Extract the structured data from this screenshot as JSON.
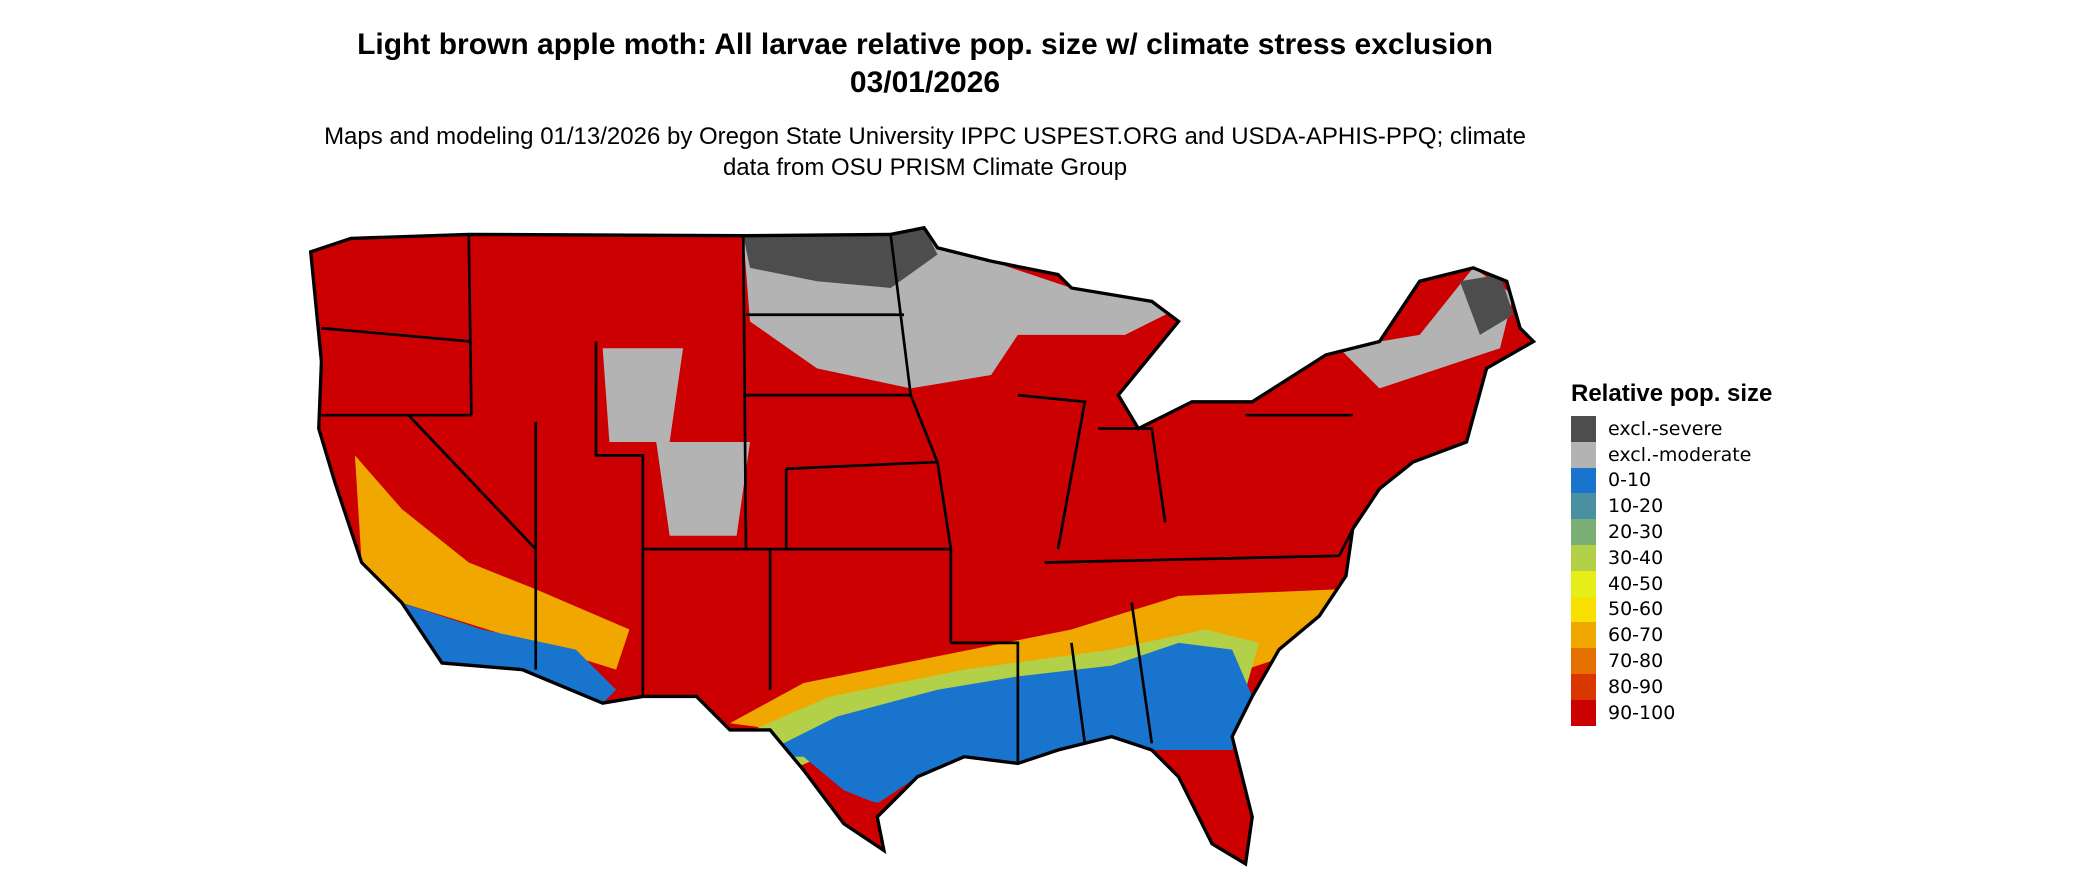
{
  "title": "Light brown apple moth: All larvae relative pop. size w/ climate stress exclusion 03/01/2026",
  "subtitle": "Maps and modeling 01/13/2026 by Oregon State University IPPC USPEST.ORG and USDA-APHIS-PPQ; climate data from OSU PRISM Climate Group",
  "legend": {
    "title": "Relative pop. size",
    "items": [
      {
        "label": "excl.-severe",
        "color": "#4d4d4d"
      },
      {
        "label": "excl.-moderate",
        "color": "#b3b3b3"
      },
      {
        "label": "0-10",
        "color": "#1874cd"
      },
      {
        "label": "10-20",
        "color": "#4a90a0"
      },
      {
        "label": "20-30",
        "color": "#7bae74"
      },
      {
        "label": "30-40",
        "color": "#b2d048"
      },
      {
        "label": "40-50",
        "color": "#e6ee18"
      },
      {
        "label": "50-60",
        "color": "#f8e000"
      },
      {
        "label": "60-70",
        "color": "#f0a800"
      },
      {
        "label": "70-80",
        "color": "#e47000"
      },
      {
        "label": "80-90",
        "color": "#d83800"
      },
      {
        "label": "90-100",
        "color": "#cc0000"
      }
    ]
  }
}
